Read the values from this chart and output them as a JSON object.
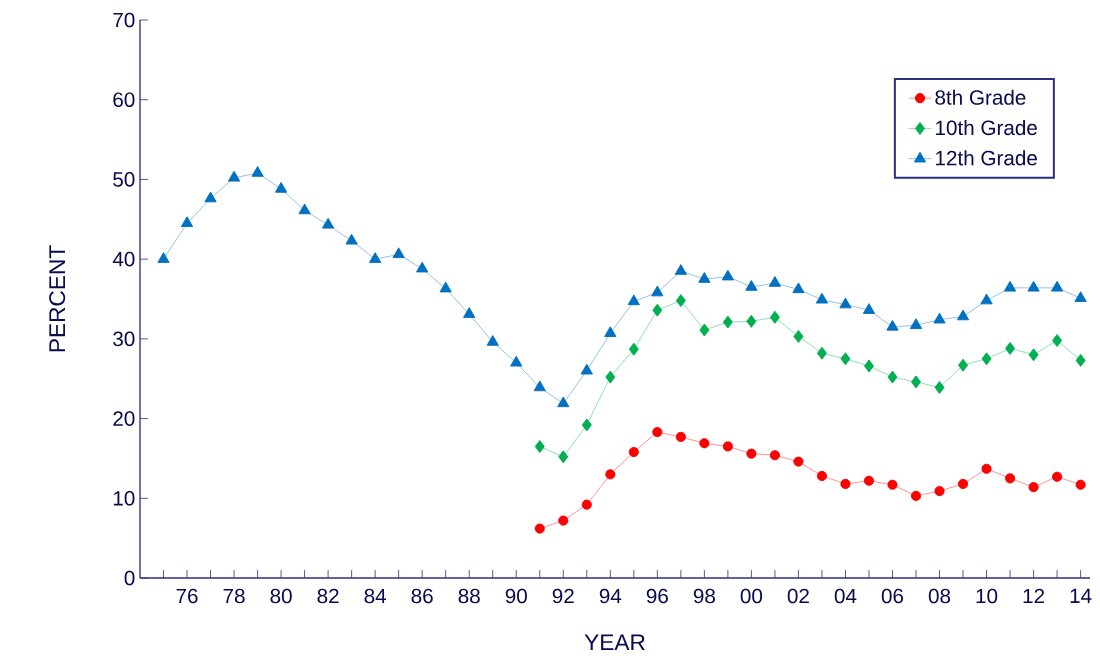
{
  "chart_data": {
    "type": "line",
    "xlabel": "YEAR",
    "ylabel": "PERCENT",
    "categories": [
      null,
      "76",
      null,
      "78",
      null,
      "80",
      null,
      "82",
      null,
      "84",
      null,
      "86",
      null,
      "88",
      null,
      "90",
      null,
      "92",
      null,
      "94",
      null,
      "96",
      null,
      "98",
      null,
      "00",
      null,
      "02",
      null,
      "04",
      null,
      "06",
      null,
      "08",
      null,
      "10",
      null,
      "12",
      null,
      "14"
    ],
    "series": [
      {
        "name": "8th Grade",
        "color": "#ff0000",
        "marker": "circle",
        "values": [
          null,
          null,
          null,
          null,
          null,
          null,
          null,
          null,
          null,
          null,
          null,
          null,
          null,
          null,
          null,
          null,
          6.2,
          7.2,
          9.2,
          13.0,
          15.8,
          18.3,
          17.7,
          16.9,
          16.5,
          15.6,
          15.4,
          14.6,
          12.8,
          11.8,
          12.2,
          11.7,
          10.3,
          10.9,
          11.8,
          13.7,
          12.5,
          11.4,
          12.7,
          11.7
        ]
      },
      {
        "name": "10th Grade",
        "color": "#00b050",
        "marker": "diamond",
        "values": [
          null,
          null,
          null,
          null,
          null,
          null,
          null,
          null,
          null,
          null,
          null,
          null,
          null,
          null,
          null,
          null,
          16.5,
          15.2,
          19.2,
          25.2,
          28.7,
          33.6,
          34.8,
          31.1,
          32.1,
          32.2,
          32.7,
          30.3,
          28.2,
          27.5,
          26.6,
          25.2,
          24.6,
          23.9,
          26.7,
          27.5,
          28.8,
          28.0,
          29.8,
          27.3
        ]
      },
      {
        "name": "12th Grade",
        "color": "#0070c0",
        "marker": "triangle",
        "values": [
          40.0,
          44.5,
          47.6,
          50.2,
          50.8,
          48.8,
          46.1,
          44.3,
          42.3,
          40.0,
          40.6,
          38.8,
          36.3,
          33.1,
          29.6,
          27.0,
          23.9,
          21.9,
          26.0,
          30.7,
          34.7,
          35.8,
          38.5,
          37.5,
          37.8,
          36.5,
          37.0,
          36.2,
          34.9,
          34.3,
          33.6,
          31.5,
          31.7,
          32.4,
          32.8,
          34.8,
          36.4,
          36.4,
          36.4,
          35.1
        ]
      }
    ],
    "ylim": [
      0,
      70
    ],
    "yticks": [
      0,
      10,
      20,
      30,
      40,
      50,
      60,
      70
    ],
    "grid": false,
    "legend": "top right"
  }
}
